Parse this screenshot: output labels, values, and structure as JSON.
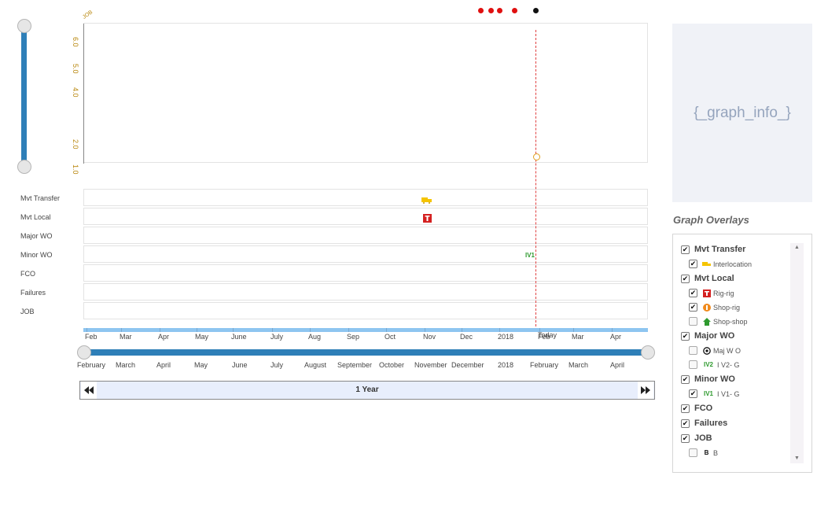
{
  "top_dots": [
    {
      "color": "#e01010"
    },
    {
      "color": "#e01010"
    },
    {
      "color": "#e01010"
    },
    {
      "color": "#e01010"
    },
    {
      "color": "#111111"
    }
  ],
  "yaxis": {
    "corner_label": "JOB",
    "ticks": [
      "6.0",
      "5.0",
      "4.0",
      "2.0",
      "1.0"
    ]
  },
  "rows": [
    "Mvt Transfer",
    "Mvt Local",
    "Major WO",
    "Minor WO",
    "FCO",
    "Failures",
    "JOB"
  ],
  "row_markers": {
    "minor_wo_label": "IV1"
  },
  "axis": {
    "top_months": [
      "Feb",
      "Mar",
      "Apr",
      "May",
      "June",
      "July",
      "Aug",
      "Sep",
      "Oct",
      "Nov",
      "Dec",
      "2018",
      "Feb",
      "Mar",
      "Apr"
    ],
    "today_label": "Today",
    "bottom_months": [
      "February",
      "March",
      "April",
      "May",
      "June",
      "July",
      "August",
      "September",
      "October",
      "November",
      "December",
      "2018",
      "February",
      "March",
      "April"
    ]
  },
  "range": {
    "label": "1 Year",
    "prev_icon": "rewind-icon",
    "next_icon": "fast-forward-icon"
  },
  "graph_info": {
    "placeholder": "{_graph_info_}"
  },
  "overlays": {
    "title": "Graph Overlays",
    "groups": [
      {
        "label": "Mvt Transfer",
        "checked": true,
        "items": [
          {
            "label": "Interlocation",
            "checked": true,
            "icon": "truck-icon"
          }
        ]
      },
      {
        "label": "Mvt Local",
        "checked": true,
        "items": [
          {
            "label": "Rig-rig",
            "checked": true,
            "icon": "rig-icon"
          },
          {
            "label": "Shop-rig",
            "checked": true,
            "icon": "shop-rig-icon"
          },
          {
            "label": "Shop-shop",
            "checked": false,
            "icon": "house-icon"
          }
        ]
      },
      {
        "label": "Major WO",
        "checked": true,
        "items": [
          {
            "label": "Maj W O",
            "checked": false,
            "icon": "target-icon"
          },
          {
            "label": "I V2- G",
            "checked": false,
            "icon": "iv2-icon",
            "icon_text": "IV2"
          }
        ]
      },
      {
        "label": "Minor WO",
        "checked": true,
        "items": [
          {
            "label": "I V1- G",
            "checked": true,
            "icon": "iv1-icon",
            "icon_text": "IV1"
          }
        ]
      },
      {
        "label": "FCO",
        "checked": true,
        "items": []
      },
      {
        "label": "Failures",
        "checked": true,
        "items": []
      },
      {
        "label": "JOB",
        "checked": true,
        "items": [
          {
            "label": "B",
            "checked": false,
            "icon": "b-icon",
            "icon_text": "B"
          }
        ]
      }
    ]
  },
  "colors": {
    "accent": "#2e7fb8",
    "axis_bar": "#8ec5f0",
    "today_line": "#e04040",
    "tick_text": "#b8860b",
    "iv_green": "#2e9a2e"
  }
}
